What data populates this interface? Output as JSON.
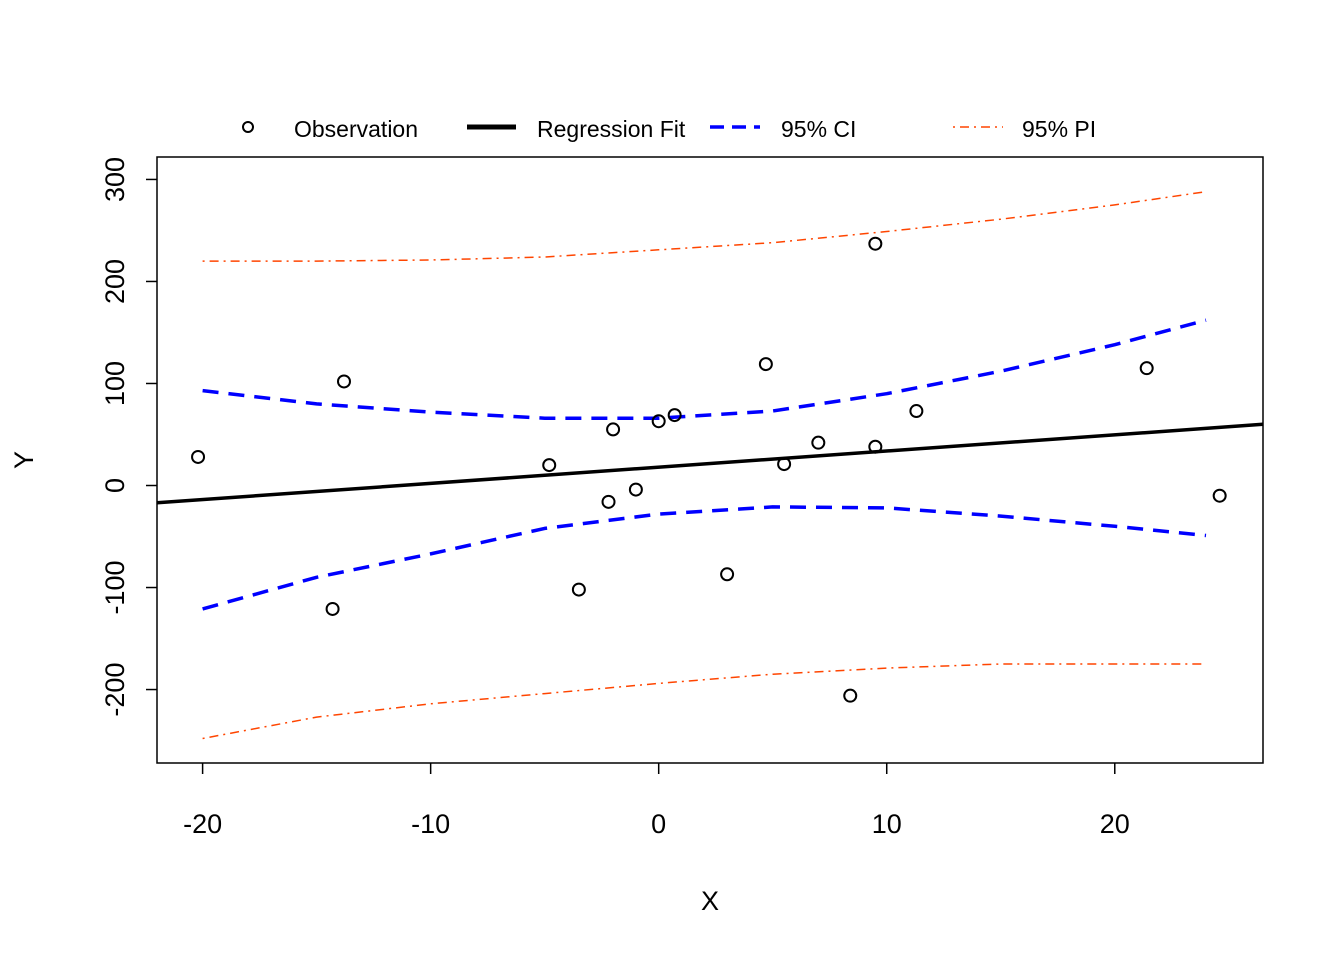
{
  "chart_data": {
    "type": "scatter",
    "xlabel": "X",
    "ylabel": "Y",
    "xlim": [
      -22,
      26.5
    ],
    "ylim": [
      -272,
      322
    ],
    "x_ticks": [
      -20,
      -10,
      0,
      10,
      20
    ],
    "y_ticks": [
      -200,
      -100,
      0,
      100,
      200,
      300
    ],
    "grid": false,
    "legend_position": "top",
    "legend": [
      {
        "label": "Observation",
        "kind": "point",
        "color": "#000000"
      },
      {
        "label": "Regression Fit",
        "kind": "solid",
        "color": "#000000"
      },
      {
        "label": "95% CI",
        "kind": "dashed",
        "color": "#0000ff"
      },
      {
        "label": "95% PI",
        "kind": "dotdash",
        "color": "#ff4500"
      }
    ],
    "observations": {
      "x": [
        -20.2,
        -14.3,
        -13.8,
        -4.8,
        -3.5,
        -2.2,
        -2.0,
        -1.0,
        0.0,
        0.7,
        3.0,
        4.7,
        5.5,
        7.0,
        8.4,
        9.5,
        9.5,
        11.3,
        21.4,
        24.6
      ],
      "y": [
        28,
        -121,
        102,
        20,
        -102,
        -16,
        55,
        -4,
        63,
        69,
        -87,
        119,
        21,
        42,
        -206,
        237,
        38,
        73,
        115,
        -10
      ]
    },
    "regression_fit": {
      "x": [
        -22,
        26.5
      ],
      "y": [
        -17,
        60
      ]
    },
    "ci_upper": {
      "x": [
        -20,
        -15,
        -10,
        -5,
        0,
        5,
        10,
        15,
        20,
        24
      ],
      "y": [
        93,
        80,
        72,
        66,
        66,
        73,
        90,
        112,
        138,
        162
      ]
    },
    "ci_lower": {
      "x": [
        -20,
        -15,
        -10,
        -5,
        0,
        5,
        10,
        15,
        20,
        24
      ],
      "y": [
        -121,
        -90,
        -67,
        -42,
        -28,
        -21,
        -22,
        -30,
        -40,
        -49
      ]
    },
    "pi_upper": {
      "x": [
        -20,
        -15,
        -10,
        -5,
        0,
        5,
        10,
        15,
        20,
        24
      ],
      "y": [
        220,
        220,
        221,
        224,
        231,
        238,
        249,
        261,
        275,
        288
      ]
    },
    "pi_lower": {
      "x": [
        -20,
        -15,
        -10,
        -5,
        0,
        5,
        10,
        15,
        20,
        24
      ],
      "y": [
        -248,
        -227,
        -214,
        -204,
        -194,
        -185,
        -179,
        -175,
        -175,
        -175
      ]
    },
    "colors": {
      "observation": "#000000",
      "fit": "#000000",
      "ci": "#0000ff",
      "pi": "#ff4500"
    }
  }
}
